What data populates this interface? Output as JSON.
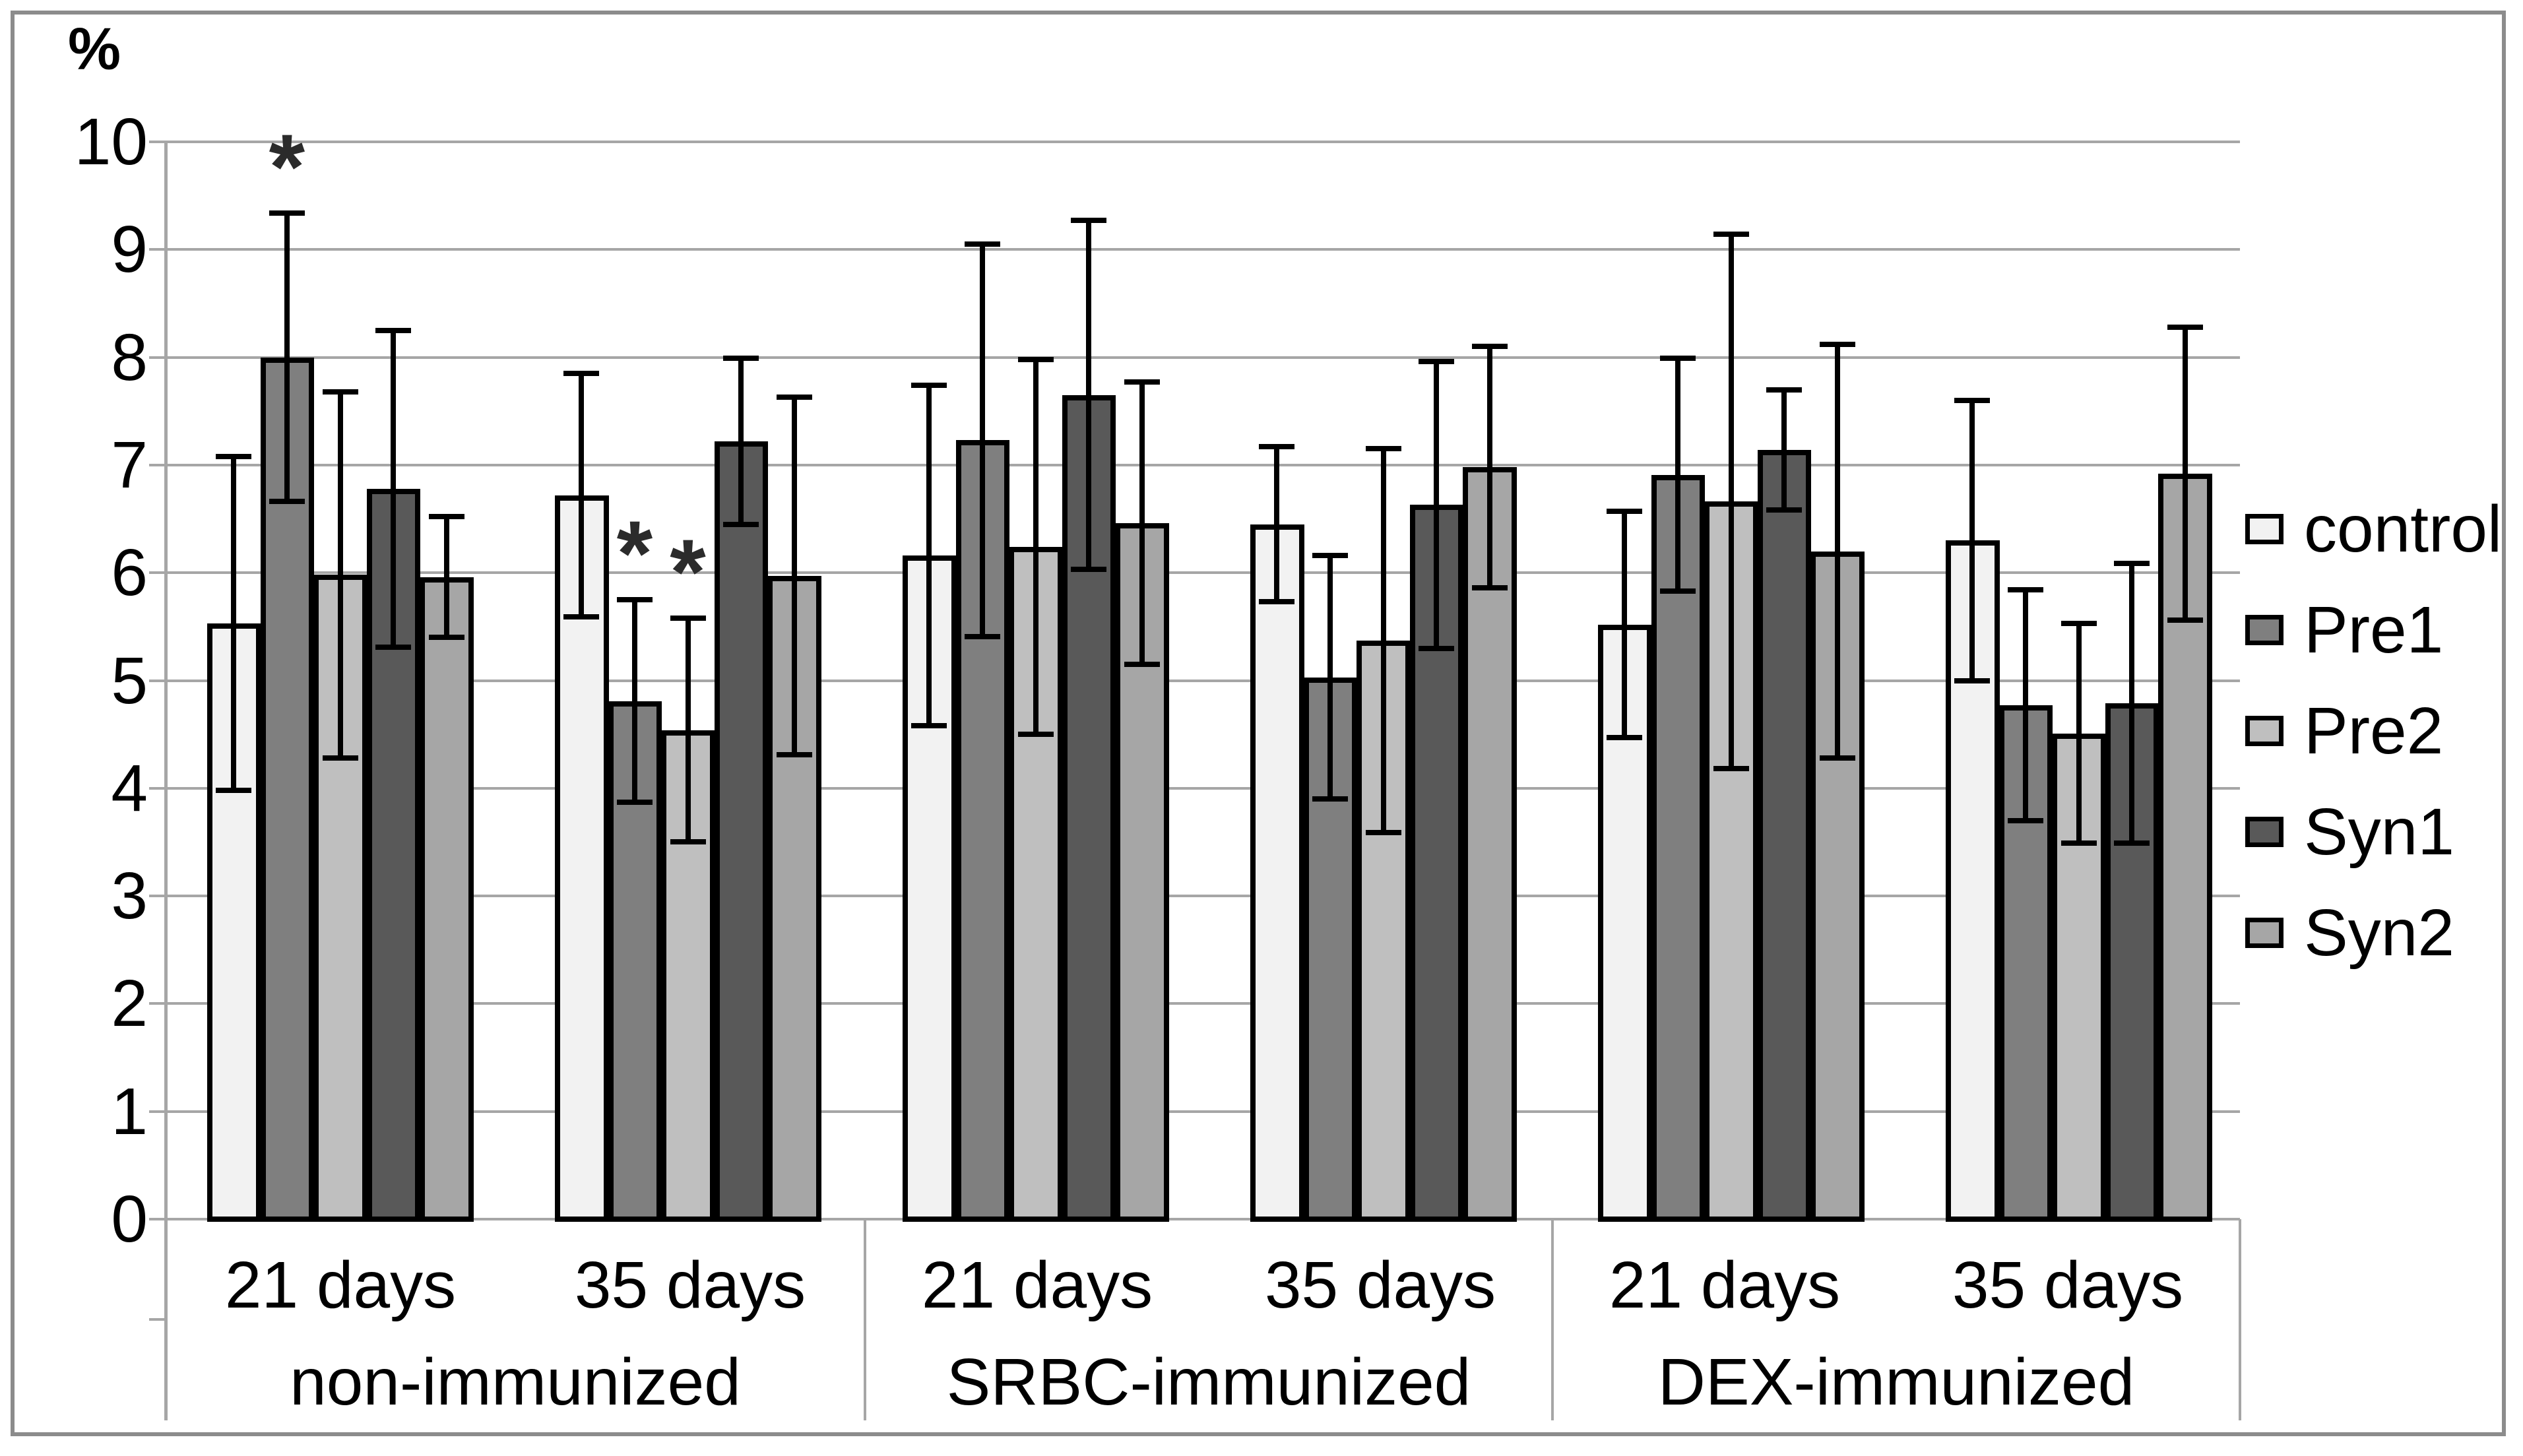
{
  "chart_data": {
    "type": "bar",
    "title": "",
    "ylabel": "%",
    "ylim": [
      0,
      10
    ],
    "ytick_step": 1,
    "grid": true,
    "legend_position": "right",
    "groups": [
      {
        "label": "non-immunized",
        "subgroups": [
          "21 days",
          "35 days"
        ]
      },
      {
        "label": "SRBC-immunized",
        "subgroups": [
          "21 days",
          "35 days"
        ]
      },
      {
        "label": "DEX-immunized",
        "subgroups": [
          "21 days",
          "35 days"
        ]
      }
    ],
    "cluster_order": [
      "non-immunized 21 days",
      "non-immunized 35 days",
      "SRBC-immunized 21 days",
      "SRBC-immunized 35 days",
      "DEX-immunized 21 days",
      "DEX-immunized 35 days"
    ],
    "series": [
      {
        "name": "control",
        "color": "#f2f2f2",
        "values": [
          5.53,
          6.72,
          6.16,
          6.45,
          5.52,
          6.3
        ],
        "errors": [
          1.55,
          1.13,
          1.58,
          0.72,
          1.05,
          1.3
        ]
      },
      {
        "name": "Pre1",
        "color": "#7f7f7f",
        "values": [
          8.0,
          4.81,
          7.23,
          5.03,
          6.91,
          4.77
        ],
        "errors": [
          1.34,
          0.94,
          1.82,
          1.13,
          1.08,
          1.07
        ]
      },
      {
        "name": "Pre2",
        "color": "#bfbfbf",
        "values": [
          5.98,
          4.54,
          6.24,
          5.37,
          6.66,
          4.51
        ],
        "errors": [
          1.7,
          1.04,
          1.74,
          1.78,
          2.48,
          1.02
        ]
      },
      {
        "name": "Syn1",
        "color": "#595959",
        "values": [
          6.78,
          7.22,
          7.65,
          6.63,
          7.14,
          4.79
        ],
        "errors": [
          1.47,
          0.77,
          1.62,
          1.33,
          0.56,
          1.3
        ]
      },
      {
        "name": "Syn2",
        "color": "#a6a6a6",
        "values": [
          5.96,
          5.97,
          6.46,
          6.98,
          6.2,
          6.92
        ],
        "errors": [
          0.56,
          1.66,
          1.31,
          1.12,
          1.92,
          1.36
        ]
      }
    ],
    "annotations": [
      {
        "series": "Pre1",
        "bar_index": 0,
        "symbol": "*"
      },
      {
        "series": "Pre1",
        "bar_index": 1,
        "symbol": "*"
      },
      {
        "series": "Pre2",
        "bar_index": 1,
        "symbol": "*"
      }
    ],
    "colors": {
      "gridline": "#a6a6a6",
      "frame": "#8c8c8c",
      "bar_border": "#000000",
      "error_bar": "#000000",
      "text": "#000000",
      "asterisk": "#2b2b2b"
    }
  }
}
